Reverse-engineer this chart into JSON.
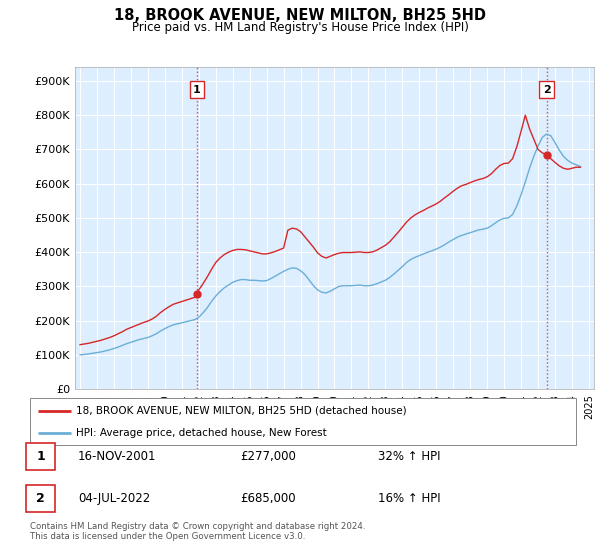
{
  "title": "18, BROOK AVENUE, NEW MILTON, BH25 5HD",
  "subtitle": "Price paid vs. HM Land Registry's House Price Index (HPI)",
  "ylabel_ticks": [
    "£0",
    "£100K",
    "£200K",
    "£300K",
    "£400K",
    "£500K",
    "£600K",
    "£700K",
    "£800K",
    "£900K"
  ],
  "ytick_values": [
    0,
    100000,
    200000,
    300000,
    400000,
    500000,
    600000,
    700000,
    800000,
    900000
  ],
  "ylim": [
    0,
    940000
  ],
  "xlim_start": 1994.7,
  "xlim_end": 2025.3,
  "hpi_color": "#6baed6",
  "price_color": "#d62728",
  "vline_color": "#d62728",
  "background_color": "#ffffff",
  "plot_bg_color": "#ddeeff",
  "grid_color": "#ffffff",
  "legend_label_price": "18, BROOK AVENUE, NEW MILTON, BH25 5HD (detached house)",
  "legend_label_hpi": "HPI: Average price, detached house, New Forest",
  "transaction1_x": 2001.88,
  "transaction1_y": 277000,
  "transaction1_label": "1",
  "transaction1_date": "16-NOV-2001",
  "transaction1_price": "£277,000",
  "transaction1_hpi": "32% ↑ HPI",
  "transaction2_x": 2022.5,
  "transaction2_y": 685000,
  "transaction2_label": "2",
  "transaction2_date": "04-JUL-2022",
  "transaction2_price": "£685,000",
  "transaction2_hpi": "16% ↑ HPI",
  "footnote": "Contains HM Land Registry data © Crown copyright and database right 2024.\nThis data is licensed under the Open Government Licence v3.0.",
  "hpi_data_x": [
    1995.0,
    1995.25,
    1995.5,
    1995.75,
    1996.0,
    1996.25,
    1996.5,
    1996.75,
    1997.0,
    1997.25,
    1997.5,
    1997.75,
    1998.0,
    1998.25,
    1998.5,
    1998.75,
    1999.0,
    1999.25,
    1999.5,
    1999.75,
    2000.0,
    2000.25,
    2000.5,
    2000.75,
    2001.0,
    2001.25,
    2001.5,
    2001.75,
    2002.0,
    2002.25,
    2002.5,
    2002.75,
    2003.0,
    2003.25,
    2003.5,
    2003.75,
    2004.0,
    2004.25,
    2004.5,
    2004.75,
    2005.0,
    2005.25,
    2005.5,
    2005.75,
    2006.0,
    2006.25,
    2006.5,
    2006.75,
    2007.0,
    2007.25,
    2007.5,
    2007.75,
    2008.0,
    2008.25,
    2008.5,
    2008.75,
    2009.0,
    2009.25,
    2009.5,
    2009.75,
    2010.0,
    2010.25,
    2010.5,
    2010.75,
    2011.0,
    2011.25,
    2011.5,
    2011.75,
    2012.0,
    2012.25,
    2012.5,
    2012.75,
    2013.0,
    2013.25,
    2013.5,
    2013.75,
    2014.0,
    2014.25,
    2014.5,
    2014.75,
    2015.0,
    2015.25,
    2015.5,
    2015.75,
    2016.0,
    2016.25,
    2016.5,
    2016.75,
    2017.0,
    2017.25,
    2017.5,
    2017.75,
    2018.0,
    2018.25,
    2018.5,
    2018.75,
    2019.0,
    2019.25,
    2019.5,
    2019.75,
    2020.0,
    2020.25,
    2020.5,
    2020.75,
    2021.0,
    2021.25,
    2021.5,
    2021.75,
    2022.0,
    2022.25,
    2022.5,
    2022.75,
    2023.0,
    2023.25,
    2023.5,
    2023.75,
    2024.0,
    2024.25,
    2024.5
  ],
  "hpi_data_y": [
    100000,
    101500,
    103000,
    105000,
    107000,
    109000,
    112000,
    115000,
    119000,
    123000,
    128000,
    133000,
    137000,
    141000,
    145000,
    148000,
    151000,
    156000,
    162000,
    170000,
    177000,
    183000,
    188000,
    191000,
    194000,
    197000,
    200000,
    203000,
    210000,
    223000,
    238000,
    256000,
    272000,
    285000,
    296000,
    304000,
    312000,
    317000,
    320000,
    320000,
    318000,
    318000,
    317000,
    316000,
    317000,
    323000,
    330000,
    337000,
    344000,
    350000,
    354000,
    353000,
    346000,
    335000,
    319000,
    303000,
    290000,
    283000,
    281000,
    286000,
    293000,
    300000,
    302000,
    302000,
    302000,
    303000,
    304000,
    302000,
    302000,
    304000,
    308000,
    313000,
    318000,
    326000,
    336000,
    347000,
    358000,
    370000,
    379000,
    385000,
    390000,
    395000,
    400000,
    404000,
    409000,
    415000,
    422000,
    430000,
    437000,
    444000,
    449000,
    453000,
    457000,
    461000,
    465000,
    467000,
    470000,
    477000,
    486000,
    494000,
    499000,
    500000,
    510000,
    535000,
    568000,
    605000,
    645000,
    680000,
    710000,
    735000,
    745000,
    740000,
    720000,
    698000,
    680000,
    668000,
    660000,
    655000,
    650000
  ],
  "price_data_x": [
    1995.0,
    1995.25,
    1995.5,
    1995.75,
    1996.0,
    1996.25,
    1996.5,
    1996.75,
    1997.0,
    1997.25,
    1997.5,
    1997.75,
    1998.0,
    1998.25,
    1998.5,
    1998.75,
    1999.0,
    1999.25,
    1999.5,
    1999.75,
    2000.0,
    2000.25,
    2000.5,
    2000.75,
    2001.0,
    2001.25,
    2001.5,
    2001.75,
    2001.88,
    2002.0,
    2002.25,
    2002.5,
    2002.75,
    2003.0,
    2003.25,
    2003.5,
    2003.75,
    2004.0,
    2004.25,
    2004.5,
    2004.75,
    2005.0,
    2005.25,
    2005.5,
    2005.75,
    2006.0,
    2006.25,
    2006.5,
    2006.75,
    2007.0,
    2007.25,
    2007.5,
    2007.75,
    2008.0,
    2008.25,
    2008.5,
    2008.75,
    2009.0,
    2009.25,
    2009.5,
    2009.75,
    2010.0,
    2010.25,
    2010.5,
    2010.75,
    2011.0,
    2011.25,
    2011.5,
    2011.75,
    2012.0,
    2012.25,
    2012.5,
    2012.75,
    2013.0,
    2013.25,
    2013.5,
    2013.75,
    2014.0,
    2014.25,
    2014.5,
    2014.75,
    2015.0,
    2015.25,
    2015.5,
    2015.75,
    2016.0,
    2016.25,
    2016.5,
    2016.75,
    2017.0,
    2017.25,
    2017.5,
    2017.75,
    2018.0,
    2018.25,
    2018.5,
    2018.75,
    2019.0,
    2019.25,
    2019.5,
    2019.75,
    2020.0,
    2020.25,
    2020.5,
    2020.75,
    2021.0,
    2021.25,
    2021.5,
    2021.75,
    2022.0,
    2022.25,
    2022.5,
    2022.75,
    2023.0,
    2023.25,
    2023.5,
    2023.75,
    2024.0,
    2024.25,
    2024.5
  ],
  "price_data_y": [
    130000,
    132000,
    134000,
    137000,
    140000,
    143000,
    147000,
    151000,
    156000,
    162000,
    168000,
    175000,
    180000,
    185000,
    190000,
    195000,
    199000,
    205000,
    213000,
    224000,
    233000,
    241000,
    248000,
    252000,
    256000,
    260000,
    264000,
    268000,
    277000,
    290000,
    308000,
    328000,
    350000,
    370000,
    383000,
    393000,
    400000,
    405000,
    408000,
    408000,
    407000,
    404000,
    401000,
    398000,
    395000,
    395000,
    398000,
    402000,
    407000,
    412000,
    464000,
    470000,
    468000,
    460000,
    445000,
    430000,
    415000,
    398000,
    388000,
    383000,
    388000,
    393000,
    397000,
    399000,
    399000,
    399000,
    400000,
    401000,
    399000,
    399000,
    401000,
    406000,
    413000,
    420000,
    430000,
    444000,
    458000,
    473000,
    488000,
    500000,
    509000,
    516000,
    522000,
    529000,
    535000,
    541000,
    549000,
    559000,
    568000,
    578000,
    587000,
    594000,
    598000,
    603000,
    608000,
    612000,
    615000,
    620000,
    629000,
    642000,
    653000,
    659000,
    660000,
    673000,
    708000,
    753000,
    800000,
    760000,
    730000,
    700000,
    690000,
    685000,
    673000,
    662000,
    652000,
    645000,
    642000,
    645000,
    648000,
    648000
  ]
}
